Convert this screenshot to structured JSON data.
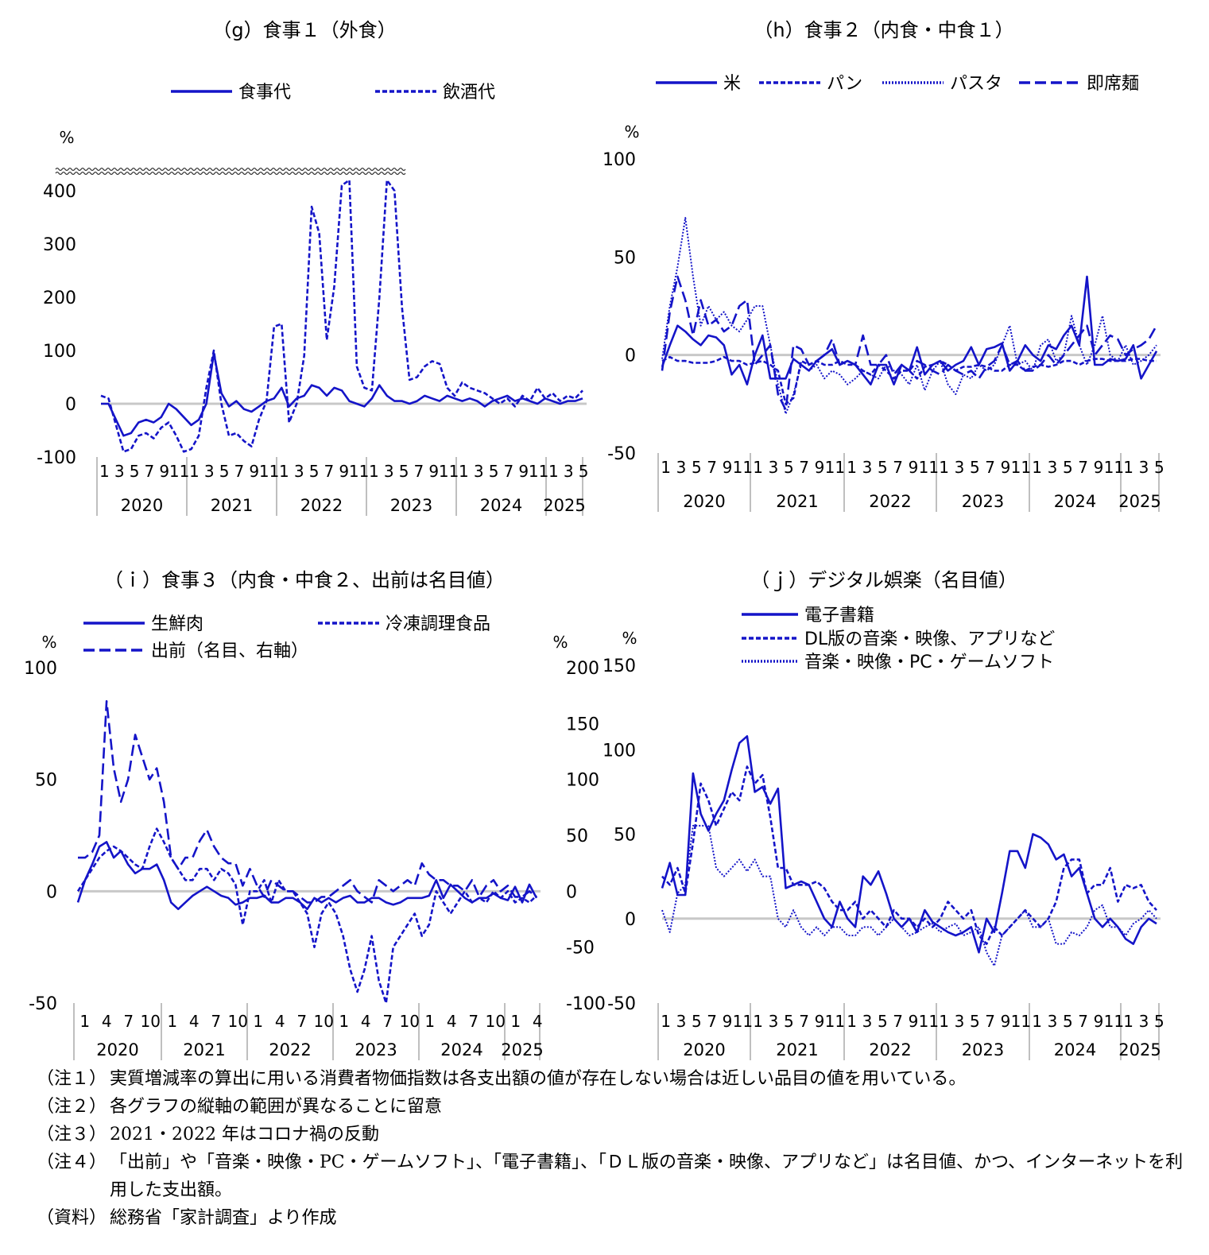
{
  "chart_data": [
    {
      "id": "g",
      "type": "line",
      "title": "（g）食事１（外食）",
      "unit_label": "%",
      "yticks": [
        400,
        300,
        200,
        100,
        0,
        -100
      ],
      "ylim": [
        -100,
        400
      ],
      "axis_break": true,
      "legend_placement": "top",
      "x_month_labels": [
        "1",
        "3",
        "5",
        "7",
        "9",
        "11",
        "1",
        "3",
        "5",
        "7",
        "9",
        "11",
        "1",
        "3",
        "5",
        "7",
        "9",
        "11",
        "1",
        "3",
        "5",
        "7",
        "9",
        "11",
        "1",
        "3",
        "5",
        "7",
        "9",
        "11",
        "1",
        "3",
        "5"
      ],
      "years": [
        "2020",
        "2021",
        "2022",
        "2023",
        "2024",
        "2025"
      ],
      "months_count": 65,
      "series": [
        {
          "name": "食事代",
          "style": "solid",
          "axis": "left",
          "values": [
            0,
            0,
            -30,
            -60,
            -55,
            -35,
            -30,
            -35,
            -25,
            0,
            -10,
            -25,
            -40,
            -30,
            0,
            95,
            20,
            -5,
            5,
            -10,
            -15,
            -5,
            5,
            10,
            30,
            -5,
            10,
            15,
            35,
            30,
            15,
            30,
            25,
            5,
            0,
            -5,
            10,
            35,
            15,
            5,
            5,
            0,
            5,
            15,
            10,
            5,
            15,
            10,
            5,
            10,
            5,
            -5,
            5,
            10,
            15,
            5,
            10,
            5,
            0,
            10,
            5,
            0,
            5,
            5,
            10
          ]
        },
        {
          "name": "飲酒代",
          "style": "dash",
          "axis": "left",
          "values": [
            15,
            10,
            -40,
            -90,
            -85,
            -60,
            -55,
            -65,
            -45,
            -35,
            -60,
            -90,
            -85,
            -60,
            30,
            100,
            0,
            -60,
            -55,
            -70,
            -80,
            -30,
            5,
            145,
            150,
            -35,
            0,
            90,
            370,
            320,
            120,
            220,
            410,
            420,
            70,
            30,
            25,
            200,
            420,
            400,
            180,
            45,
            50,
            70,
            80,
            75,
            30,
            15,
            40,
            30,
            25,
            20,
            10,
            0,
            10,
            -5,
            15,
            5,
            30,
            10,
            20,
            5,
            15,
            10,
            25
          ]
        }
      ]
    },
    {
      "id": "h",
      "type": "line",
      "title": "（h）食事２（内食・中食１）",
      "unit_label": "%",
      "yticks": [
        100,
        50,
        0,
        -50
      ],
      "ylim": [
        -50,
        100
      ],
      "legend_placement": "top",
      "x_month_labels": [
        "1",
        "3",
        "5",
        "7",
        "9",
        "11",
        "1",
        "3",
        "5",
        "7",
        "9",
        "11",
        "1",
        "3",
        "5",
        "7",
        "9",
        "11",
        "1",
        "3",
        "5",
        "7",
        "9",
        "11",
        "1",
        "3",
        "5",
        "7",
        "9",
        "11",
        "1",
        "3",
        "5"
      ],
      "years": [
        "2020",
        "2021",
        "2022",
        "2023",
        "2024",
        "2025"
      ],
      "months_count": 65,
      "series": [
        {
          "name": "米",
          "style": "solid",
          "values": [
            -6,
            5,
            15,
            12,
            8,
            5,
            10,
            9,
            5,
            -10,
            -5,
            -15,
            0,
            10,
            -12,
            -12,
            -12,
            -2,
            -5,
            -8,
            -3,
            0,
            3,
            -5,
            -3,
            -5,
            -10,
            -15,
            -5,
            -5,
            -15,
            -5,
            -8,
            4,
            -10,
            -5,
            -3,
            -8,
            -5,
            -3,
            4,
            -5,
            3,
            4,
            6,
            -8,
            -3,
            5,
            0,
            -3,
            5,
            3,
            10,
            15,
            5,
            40,
            -5,
            -5,
            -2,
            -3,
            -2,
            5,
            -12,
            -5,
            2
          ]
        },
        {
          "name": "パン",
          "style": "dash",
          "values": [
            -3,
            -1,
            -3,
            -3,
            -4,
            -4,
            -4,
            -3,
            -1,
            -3,
            -3,
            -5,
            -4,
            -3,
            -5,
            -8,
            -25,
            -22,
            -3,
            -5,
            -3,
            -5,
            -5,
            -3,
            -5,
            -5,
            -8,
            -10,
            -5,
            -8,
            -12,
            -8,
            -8,
            -12,
            -6,
            -5,
            -3,
            -5,
            -8,
            -6,
            -6,
            -5,
            -6,
            -8,
            -8,
            -5,
            -5,
            -8,
            -6,
            -5,
            -6,
            -5,
            -3,
            -3,
            -5,
            -3,
            -2,
            -2,
            -3,
            -3,
            -3,
            -2,
            -2,
            -3,
            -3
          ]
        },
        {
          "name": "パスタ",
          "style": "dot",
          "values": [
            -2,
            25,
            45,
            70,
            40,
            15,
            25,
            18,
            22,
            15,
            12,
            18,
            25,
            25,
            5,
            -15,
            -30,
            -20,
            -5,
            -8,
            -5,
            -12,
            -8,
            -10,
            -15,
            -12,
            -8,
            -10,
            -12,
            -5,
            -8,
            -10,
            -15,
            -5,
            -18,
            -8,
            -3,
            -15,
            -20,
            -10,
            -12,
            -5,
            -8,
            -5,
            5,
            15,
            -5,
            -3,
            -8,
            5,
            8,
            -3,
            0,
            20,
            5,
            -5,
            5,
            20,
            0,
            -3,
            5,
            -5,
            -3,
            0,
            5
          ]
        },
        {
          "name": "即席麺",
          "style": "dash-long",
          "values": [
            -8,
            22,
            40,
            28,
            10,
            28,
            15,
            18,
            12,
            15,
            25,
            28,
            -5,
            0,
            5,
            -20,
            -28,
            5,
            3,
            -5,
            -3,
            0,
            8,
            -5,
            -3,
            -5,
            10,
            -5,
            -5,
            0,
            -10,
            -5,
            -8,
            -3,
            -5,
            -8,
            -10,
            -5,
            -8,
            -10,
            -8,
            -12,
            -6,
            -3,
            5,
            -5,
            -3,
            -8,
            -8,
            -5,
            0,
            -5,
            0,
            5,
            10,
            15,
            0,
            5,
            10,
            8,
            0,
            3,
            5,
            8,
            15
          ]
        }
      ]
    },
    {
      "id": "i",
      "type": "line",
      "title": "（ｉ）食事３（内食・中食２、出前は名目値）",
      "unit_label_left": "%",
      "unit_label_right": "%",
      "yticks_left": [
        100,
        50,
        0,
        -50
      ],
      "yticks_right": [
        200,
        150,
        100,
        50,
        0,
        -50,
        -100
      ],
      "ylim_left": [
        -50,
        100
      ],
      "ylim_right": [
        -100,
        200
      ],
      "legend_placement": "top",
      "x_month_labels": [
        "1",
        "4",
        "7",
        "10",
        "1",
        "4",
        "7",
        "10",
        "1",
        "4",
        "7",
        "10",
        "1",
        "4",
        "7",
        "10",
        "1",
        "4",
        "7",
        "10",
        "1",
        "4"
      ],
      "years": [
        "2020",
        "2021",
        "2022",
        "2023",
        "2024",
        "2025"
      ],
      "months_count": 65,
      "series": [
        {
          "name": "生鮮肉",
          "style": "solid",
          "axis": "left",
          "values": [
            -5,
            5,
            12,
            20,
            22,
            15,
            18,
            12,
            8,
            10,
            10,
            12,
            5,
            -5,
            -8,
            -5,
            -2,
            0,
            2,
            0,
            -2,
            -3,
            -6,
            -5,
            -3,
            -3,
            -2,
            -5,
            -5,
            -3,
            -3,
            -5,
            -8,
            -3,
            -5,
            -3,
            -5,
            -3,
            -2,
            -5,
            -5,
            -3,
            -3,
            -5,
            -6,
            -5,
            -3,
            -3,
            -3,
            -2,
            5,
            -3,
            3,
            0,
            -3,
            -5,
            -3,
            -3,
            -1,
            -3,
            -4,
            2,
            -5,
            3,
            -3
          ]
        },
        {
          "name": "冷凍調理食品",
          "style": "dash",
          "axis": "left",
          "values": [
            0,
            5,
            10,
            15,
            18,
            20,
            18,
            15,
            12,
            10,
            20,
            28,
            22,
            15,
            10,
            5,
            5,
            10,
            10,
            5,
            10,
            8,
            3,
            -15,
            0,
            0,
            5,
            -5,
            5,
            0,
            0,
            -5,
            -10,
            -25,
            -10,
            -5,
            -10,
            -20,
            -35,
            -45,
            -35,
            -20,
            -40,
            -50,
            -25,
            -20,
            -15,
            -10,
            -20,
            -15,
            0,
            -5,
            -10,
            -5,
            0,
            -5,
            -3,
            -5,
            0,
            -3,
            0,
            -5,
            -3,
            -5,
            -2
          ]
        },
        {
          "name": "出前（名目、右軸）",
          "style": "dash-long",
          "axis": "right",
          "values": [
            30,
            30,
            35,
            50,
            170,
            110,
            80,
            100,
            140,
            120,
            100,
            110,
            80,
            30,
            20,
            30,
            30,
            45,
            55,
            40,
            30,
            25,
            25,
            5,
            20,
            5,
            -5,
            10,
            5,
            0,
            0,
            -5,
            -10,
            -10,
            -5,
            -5,
            0,
            5,
            10,
            0,
            -5,
            -10,
            10,
            5,
            0,
            5,
            10,
            5,
            25,
            15,
            10,
            10,
            5,
            5,
            0,
            10,
            -5,
            5,
            10,
            0,
            5,
            -5,
            -5,
            0,
            -5
          ]
        }
      ]
    },
    {
      "id": "j",
      "type": "line",
      "title": "（ｊ）デジタル娯楽（名目値）",
      "unit_label": "%",
      "yticks": [
        150,
        100,
        50,
        0,
        -50
      ],
      "ylim": [
        -50,
        150
      ],
      "legend_placement": "top",
      "x_month_labels": [
        "1",
        "3",
        "5",
        "7",
        "9",
        "11",
        "1",
        "3",
        "5",
        "7",
        "9",
        "11",
        "1",
        "3",
        "5",
        "7",
        "9",
        "11",
        "1",
        "3",
        "5",
        "7",
        "9",
        "11",
        "1",
        "3",
        "5",
        "7",
        "9",
        "11",
        "1",
        "3",
        "5"
      ],
      "years": [
        "2020",
        "2021",
        "2022",
        "2023",
        "2024",
        "2025"
      ],
      "months_count": 65,
      "series": [
        {
          "name": "電子書籍",
          "style": "solid",
          "values": [
            18,
            33,
            14,
            14,
            86,
            62,
            52,
            62,
            70,
            88,
            104,
            108,
            75,
            78,
            68,
            77,
            18,
            20,
            22,
            20,
            10,
            0,
            -5,
            10,
            0,
            -5,
            25,
            20,
            28,
            15,
            0,
            -5,
            0,
            -8,
            5,
            -2,
            -5,
            -8,
            -10,
            -8,
            -5,
            -20,
            0,
            -8,
            15,
            40,
            40,
            30,
            50,
            48,
            44,
            35,
            38,
            25,
            30,
            15,
            0,
            -5,
            0,
            -5,
            -12,
            -15,
            -5,
            0,
            -3
          ]
        },
        {
          "name": "DL版の音楽・映像、アプリなど",
          "style": "dash",
          "values": [
            25,
            20,
            30,
            15,
            45,
            80,
            70,
            55,
            65,
            75,
            70,
            90,
            80,
            85,
            60,
            30,
            30,
            20,
            20,
            20,
            22,
            18,
            10,
            5,
            5,
            10,
            0,
            5,
            0,
            -5,
            5,
            0,
            0,
            -5,
            0,
            -5,
            0,
            10,
            5,
            0,
            5,
            -10,
            -15,
            -5,
            -10,
            -5,
            0,
            5,
            0,
            -5,
            0,
            10,
            30,
            35,
            35,
            15,
            20,
            20,
            30,
            10,
            20,
            18,
            20,
            10,
            5
          ]
        },
        {
          "name": "音楽・映像・PC・ゲームソフト",
          "style": "dot",
          "values": [
            5,
            -8,
            15,
            20,
            55,
            55,
            55,
            30,
            25,
            30,
            35,
            28,
            35,
            25,
            25,
            0,
            -5,
            5,
            -5,
            -10,
            -5,
            -10,
            -5,
            -5,
            -10,
            -10,
            -5,
            -5,
            -10,
            -5,
            0,
            -5,
            -10,
            -8,
            -5,
            -3,
            -8,
            -5,
            -3,
            -10,
            -8,
            -5,
            -20,
            -28,
            -10,
            -5,
            0,
            5,
            -5,
            -5,
            0,
            -15,
            -15,
            -8,
            -10,
            -5,
            5,
            8,
            -5,
            -5,
            -10,
            -3,
            0,
            5,
            0
          ]
        }
      ]
    }
  ],
  "notes": [
    {
      "label": "（注１）",
      "text": "実質増減率の算出に用いる消費者物価指数は各支出額の値が存在しない場合は近しい品目の値を用いている。"
    },
    {
      "label": "（注２）",
      "text": "各グラフの縦軸の範囲が異なることに留意"
    },
    {
      "label": "（注３）",
      "text": "2021・2022 年はコロナ禍の反動"
    },
    {
      "label": "（注４）",
      "text": "「出前」や「音楽・映像・PC・ゲームソフト」、「電子書籍」、「ＤＬ版の音楽・映像、アプリなど」は名目値、かつ、インターネットを利用した支出額。"
    },
    {
      "label": "（資料）",
      "text": "総務省「家計調査」より作成"
    }
  ],
  "colors": {
    "series": "#1414c8",
    "zero_line": "#c8c8c8",
    "axis": "#bfbfbf"
  }
}
